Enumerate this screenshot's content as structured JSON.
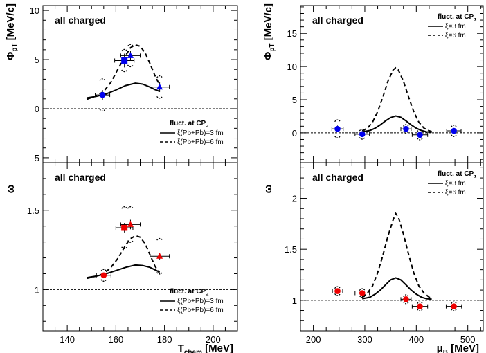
{
  "chart_data": [
    {
      "id": "phi-vs-tchem",
      "type": "scatter",
      "annotation": "all charged",
      "xlabel": "",
      "ylabel": "Φ_pT [MeV/c]",
      "xlim": [
        130,
        210
      ],
      "ylim": [
        -5.5,
        10.5
      ],
      "xticks": [
        140,
        160,
        180,
        200
      ],
      "yticks": [
        -5,
        0,
        5,
        10
      ],
      "show_xtick_labels": false,
      "reference_y": 0,
      "legend": {
        "title": "fluct. at CP₂",
        "placement": "bottom-right",
        "entries": [
          {
            "label": "ξ(Pb+Pb)=3 fm",
            "style": "solid"
          },
          {
            "label": "ξ(Pb+Pb)=6 fm",
            "style": "dashed"
          }
        ]
      },
      "points": [
        {
          "x": 154.5,
          "y": 1.4,
          "xerr": 3,
          "yerr": 0.5,
          "syst": 1.6,
          "marker": "circle",
          "color": "#0000ee"
        },
        {
          "x": 163.5,
          "y": 4.9,
          "xerr": 4,
          "yerr": 0.7,
          "syst": 1.1,
          "marker": "square",
          "color": "#0000ee"
        },
        {
          "x": 166,
          "y": 5.4,
          "xerr": 4,
          "yerr": 0.5,
          "syst": 1.1,
          "marker": "triangle",
          "color": "#0000ee"
        },
        {
          "x": 178,
          "y": 2.2,
          "xerr": 4,
          "yerr": 0.5,
          "syst": 1.1,
          "marker": "triangle",
          "color": "#0000ee"
        }
      ],
      "curves": [
        {
          "style": "solid",
          "x": [
            148,
            152,
            156,
            160,
            164,
            168,
            171,
            174,
            176,
            178
          ],
          "y": [
            1.1,
            1.25,
            1.5,
            1.9,
            2.35,
            2.6,
            2.5,
            2.2,
            1.95,
            1.75
          ]
        },
        {
          "style": "dashed",
          "x": [
            148,
            152,
            155,
            158,
            161,
            164,
            166,
            168,
            170,
            172,
            174,
            176,
            178
          ],
          "y": [
            0.95,
            1.3,
            1.75,
            2.7,
            4.1,
            5.4,
            6.2,
            6.5,
            6.35,
            5.7,
            4.6,
            3.4,
            2.4
          ]
        }
      ]
    },
    {
      "id": "phi-vs-mub",
      "type": "scatter",
      "annotation": "all charged",
      "xlabel": "",
      "ylabel": "Φ_pT [MeV/c]",
      "xlim": [
        175,
        530
      ],
      "ylim": [
        -4.5,
        19.2
      ],
      "xticks": [
        200,
        300,
        400,
        500
      ],
      "yticks": [
        0,
        5,
        10,
        15
      ],
      "show_xtick_labels": false,
      "reference_y": 0,
      "legend": {
        "title": "fluct. at CP₁",
        "placement": "top-right",
        "entries": [
          {
            "label": "ξ=3 fm",
            "style": "solid"
          },
          {
            "label": "ξ=6 fm",
            "style": "dashed"
          }
        ]
      },
      "points": [
        {
          "x": 247,
          "y": 0.6,
          "xerr": 11,
          "yerr": 0.5,
          "syst": 1.3,
          "marker": "circle",
          "color": "#0000ee"
        },
        {
          "x": 295,
          "y": -0.2,
          "xerr": 14,
          "yerr": 0.4,
          "syst": 0.7,
          "marker": "circle",
          "color": "#0000ee"
        },
        {
          "x": 380,
          "y": 0.6,
          "xerr": 10,
          "yerr": 0.5,
          "syst": 0.6,
          "marker": "circle",
          "color": "#0000ee"
        },
        {
          "x": 407,
          "y": -0.3,
          "xerr": 15,
          "yerr": 0.3,
          "syst": 0.7,
          "marker": "circle",
          "color": "#0000ee"
        },
        {
          "x": 473,
          "y": 0.3,
          "xerr": 14,
          "yerr": 0.4,
          "syst": 0.8,
          "marker": "circle",
          "color": "#0000ee"
        }
      ],
      "curves": [
        {
          "style": "solid",
          "x": [
            295,
            310,
            320,
            330,
            340,
            350,
            360,
            370,
            380,
            390,
            400,
            410,
            420,
            430
          ],
          "y": [
            0.15,
            0.35,
            0.7,
            1.2,
            1.8,
            2.3,
            2.55,
            2.35,
            1.8,
            1.2,
            0.7,
            0.35,
            0.15,
            0.08
          ]
        },
        {
          "style": "dashed",
          "x": [
            295,
            305,
            315,
            325,
            335,
            345,
            355,
            360,
            365,
            375,
            385,
            395,
            405,
            415,
            425,
            430
          ],
          "y": [
            0.3,
            0.7,
            1.6,
            3.2,
            5.4,
            7.8,
            9.5,
            9.8,
            9.5,
            7.8,
            5.4,
            3.2,
            1.6,
            0.7,
            0.3,
            0.2
          ]
        }
      ]
    },
    {
      "id": "omega-vs-tchem",
      "type": "scatter",
      "annotation": "all charged",
      "xlabel": "T_chem [MeV]",
      "ylabel": "ω",
      "xlim": [
        130,
        210
      ],
      "ylim": [
        0.74,
        1.8
      ],
      "xticks": [
        140,
        160,
        180,
        200
      ],
      "yticks": [
        1,
        1.5
      ],
      "show_xtick_labels": true,
      "reference_y": 1,
      "legend": {
        "title": "fluct. at CP₂",
        "placement": "bottom-right",
        "entries": [
          {
            "label": "ξ(Pb+Pb)=3 fm",
            "style": "solid"
          },
          {
            "label": "ξ(Pb+Pb)=6 fm",
            "style": "dashed"
          }
        ]
      },
      "points": [
        {
          "x": 155,
          "y": 1.09,
          "xerr": 3,
          "yerr": 0.015,
          "syst": 0.035,
          "marker": "circle",
          "color": "#ee0000"
        },
        {
          "x": 163.5,
          "y": 1.39,
          "xerr": 3.5,
          "yerr": 0.03,
          "syst": 0.13,
          "marker": "square",
          "color": "#ee0000"
        },
        {
          "x": 166,
          "y": 1.41,
          "xerr": 4,
          "yerr": 0.03,
          "syst": 0.11,
          "marker": "triangle",
          "color": "#ee0000"
        },
        {
          "x": 178,
          "y": 1.21,
          "xerr": 4,
          "yerr": 0.02,
          "syst": 0.11,
          "marker": "triangle",
          "color": "#ee0000"
        }
      ],
      "curves": [
        {
          "style": "solid",
          "x": [
            148,
            152,
            156,
            160,
            164,
            168,
            171,
            174,
            176,
            178
          ],
          "y": [
            1.075,
            1.085,
            1.1,
            1.12,
            1.14,
            1.155,
            1.152,
            1.14,
            1.125,
            1.11
          ]
        },
        {
          "style": "dashed",
          "x": [
            148,
            152,
            155,
            158,
            161,
            164,
            166,
            168,
            170,
            172,
            174,
            176,
            178
          ],
          "y": [
            1.07,
            1.085,
            1.1,
            1.14,
            1.2,
            1.28,
            1.32,
            1.34,
            1.33,
            1.29,
            1.22,
            1.15,
            1.1
          ]
        }
      ]
    },
    {
      "id": "omega-vs-mub",
      "type": "scatter",
      "annotation": "all charged",
      "xlabel": "μ_B [MeV]",
      "ylabel": "ω",
      "xlim": [
        175,
        530
      ],
      "ylim": [
        0.7,
        2.35
      ],
      "xticks": [
        200,
        300,
        400,
        500
      ],
      "yticks": [
        1,
        1.5,
        2
      ],
      "show_xtick_labels": true,
      "reference_y": 1,
      "legend": {
        "title": "fluct. at CP₁",
        "placement": "top-right",
        "entries": [
          {
            "label": "ξ=3 fm",
            "style": "solid"
          },
          {
            "label": "ξ=6 fm",
            "style": "dashed"
          }
        ]
      },
      "points": [
        {
          "x": 247,
          "y": 1.09,
          "xerr": 10,
          "yerr": 0.02,
          "syst": 0.04,
          "marker": "circle",
          "color": "#ee0000"
        },
        {
          "x": 295,
          "y": 1.07,
          "xerr": 14,
          "yerr": 0.02,
          "syst": 0.04,
          "marker": "circle",
          "color": "#ee0000"
        },
        {
          "x": 380,
          "y": 1.01,
          "xerr": 10,
          "yerr": 0.02,
          "syst": 0.04,
          "marker": "circle",
          "color": "#ee0000"
        },
        {
          "x": 407,
          "y": 0.94,
          "xerr": 15,
          "yerr": 0.02,
          "syst": 0.04,
          "marker": "circle",
          "color": "#ee0000"
        },
        {
          "x": 473,
          "y": 0.94,
          "xerr": 15,
          "yerr": 0.02,
          "syst": 0.04,
          "marker": "circle",
          "color": "#ee0000"
        }
      ],
      "curves": [
        {
          "style": "solid",
          "x": [
            295,
            310,
            320,
            330,
            340,
            350,
            360,
            370,
            380,
            390,
            400,
            410,
            420,
            430
          ],
          "y": [
            1.015,
            1.03,
            1.06,
            1.1,
            1.15,
            1.2,
            1.22,
            1.2,
            1.15,
            1.1,
            1.06,
            1.03,
            1.015,
            1.01
          ]
        },
        {
          "style": "dashed",
          "x": [
            295,
            305,
            315,
            325,
            335,
            345,
            355,
            360,
            365,
            375,
            385,
            395,
            405,
            415,
            425,
            430
          ],
          "y": [
            1.03,
            1.07,
            1.14,
            1.27,
            1.44,
            1.63,
            1.79,
            1.85,
            1.82,
            1.65,
            1.45,
            1.27,
            1.14,
            1.07,
            1.03,
            1.02
          ]
        }
      ]
    }
  ]
}
